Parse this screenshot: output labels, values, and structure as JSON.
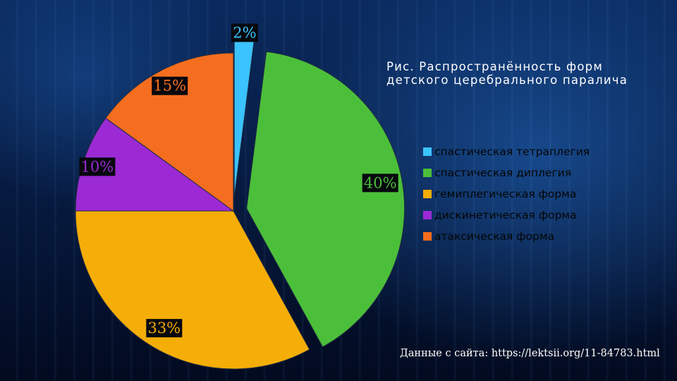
{
  "chart_data": {
    "type": "pie",
    "title": "Рис. Распространённость форм детского церебрального паралича",
    "categories": [
      "спастическая тетраплегия",
      "спастическая диплегия",
      "гемиплегическая форма",
      "дискинетическая форма",
      "атаксическая форма"
    ],
    "values": [
      2,
      40,
      33,
      10,
      15
    ],
    "data_labels": [
      "2%",
      "40%",
      "33%",
      "10%",
      "15%"
    ],
    "colors": [
      "#3bc3ff",
      "#4cbf3a",
      "#f5ad07",
      "#9b2ad4",
      "#f56e1f"
    ],
    "exploded": [
      true,
      true,
      false,
      false,
      false
    ],
    "start_angle": "12 o'clock",
    "direction": "clockwise",
    "legend_position": "right"
  },
  "source_note": "Данные с сайта: https://lektsii.org/11-84783.html"
}
